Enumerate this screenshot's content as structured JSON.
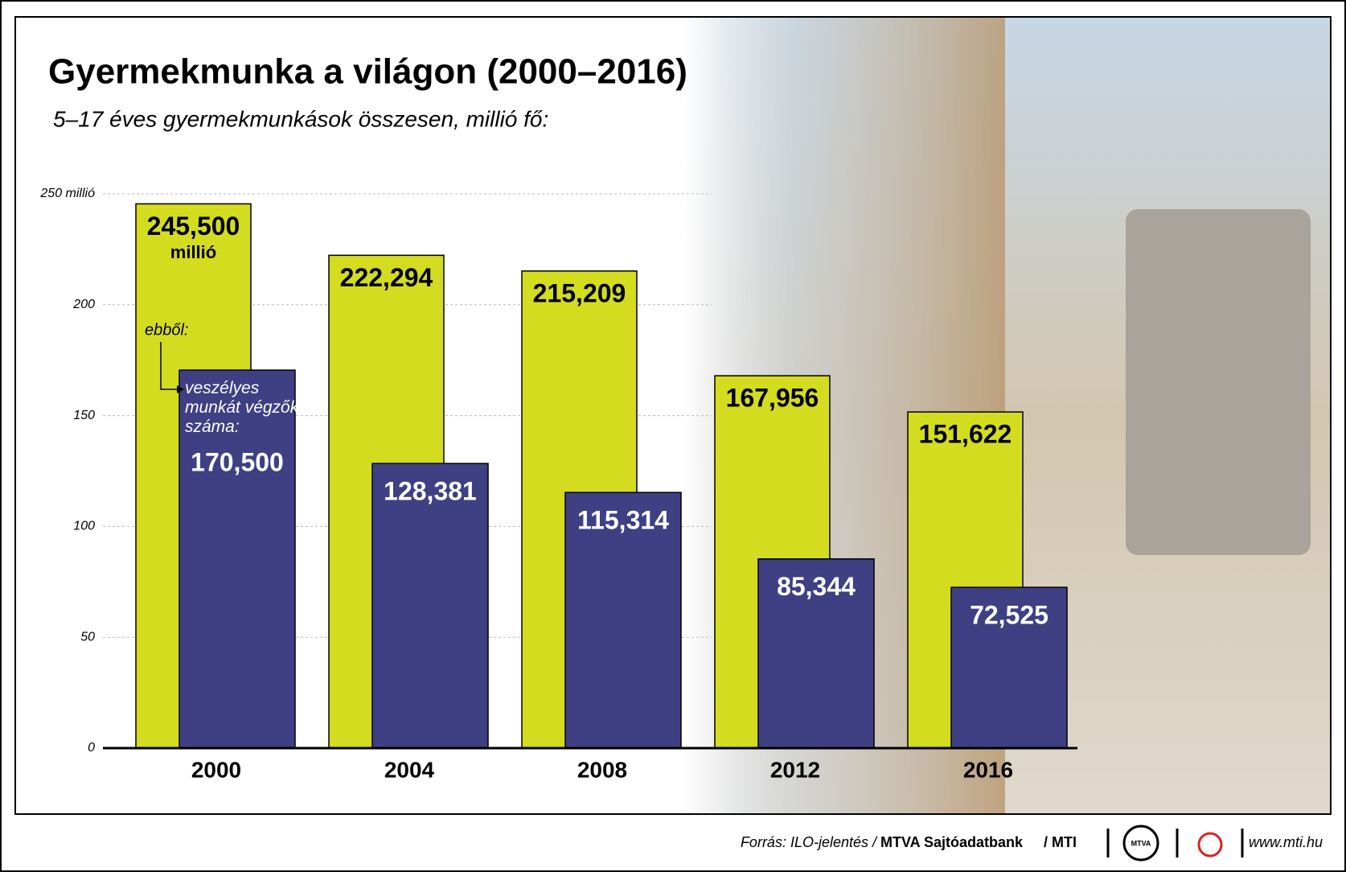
{
  "chart_data": {
    "type": "bar",
    "title": "Gyermekmunka a világon (2000–2016)",
    "subtitle": "5–17 éves gyermekmunkások összesen, millió fő:",
    "categories": [
      "2000",
      "2004",
      "2008",
      "2012",
      "2016"
    ],
    "series": [
      {
        "name": "összesen",
        "color": "#d4dc1f",
        "values": [
          245.5,
          222.294,
          215.209,
          167.956,
          151.622
        ],
        "value_labels": [
          "245,500",
          "222,294",
          "215,209",
          "167,956",
          "151,622"
        ]
      },
      {
        "name": "veszélyes munkát végzők száma:",
        "color": "#3f3f84",
        "values": [
          170.5,
          128.381,
          115.314,
          85.344,
          72.525
        ],
        "value_labels": [
          "170,500",
          "128,381",
          "115,314",
          "85,344",
          "72,525"
        ]
      }
    ],
    "ylim": [
      0,
      250
    ],
    "yticks": [
      0,
      50,
      100,
      150,
      200,
      {
        "value": 250,
        "label": "250 millió"
      }
    ],
    "grid": true,
    "annotations": {
      "unit": "millió",
      "of_which": "ebből:"
    },
    "footer": {
      "source": "Forrás: ILO-jelentés /",
      "bank": "MTVA Sajtóadatbank",
      "mti": "/ MTI",
      "logo": "MTVA",
      "url": "www.mti.hu"
    }
  }
}
